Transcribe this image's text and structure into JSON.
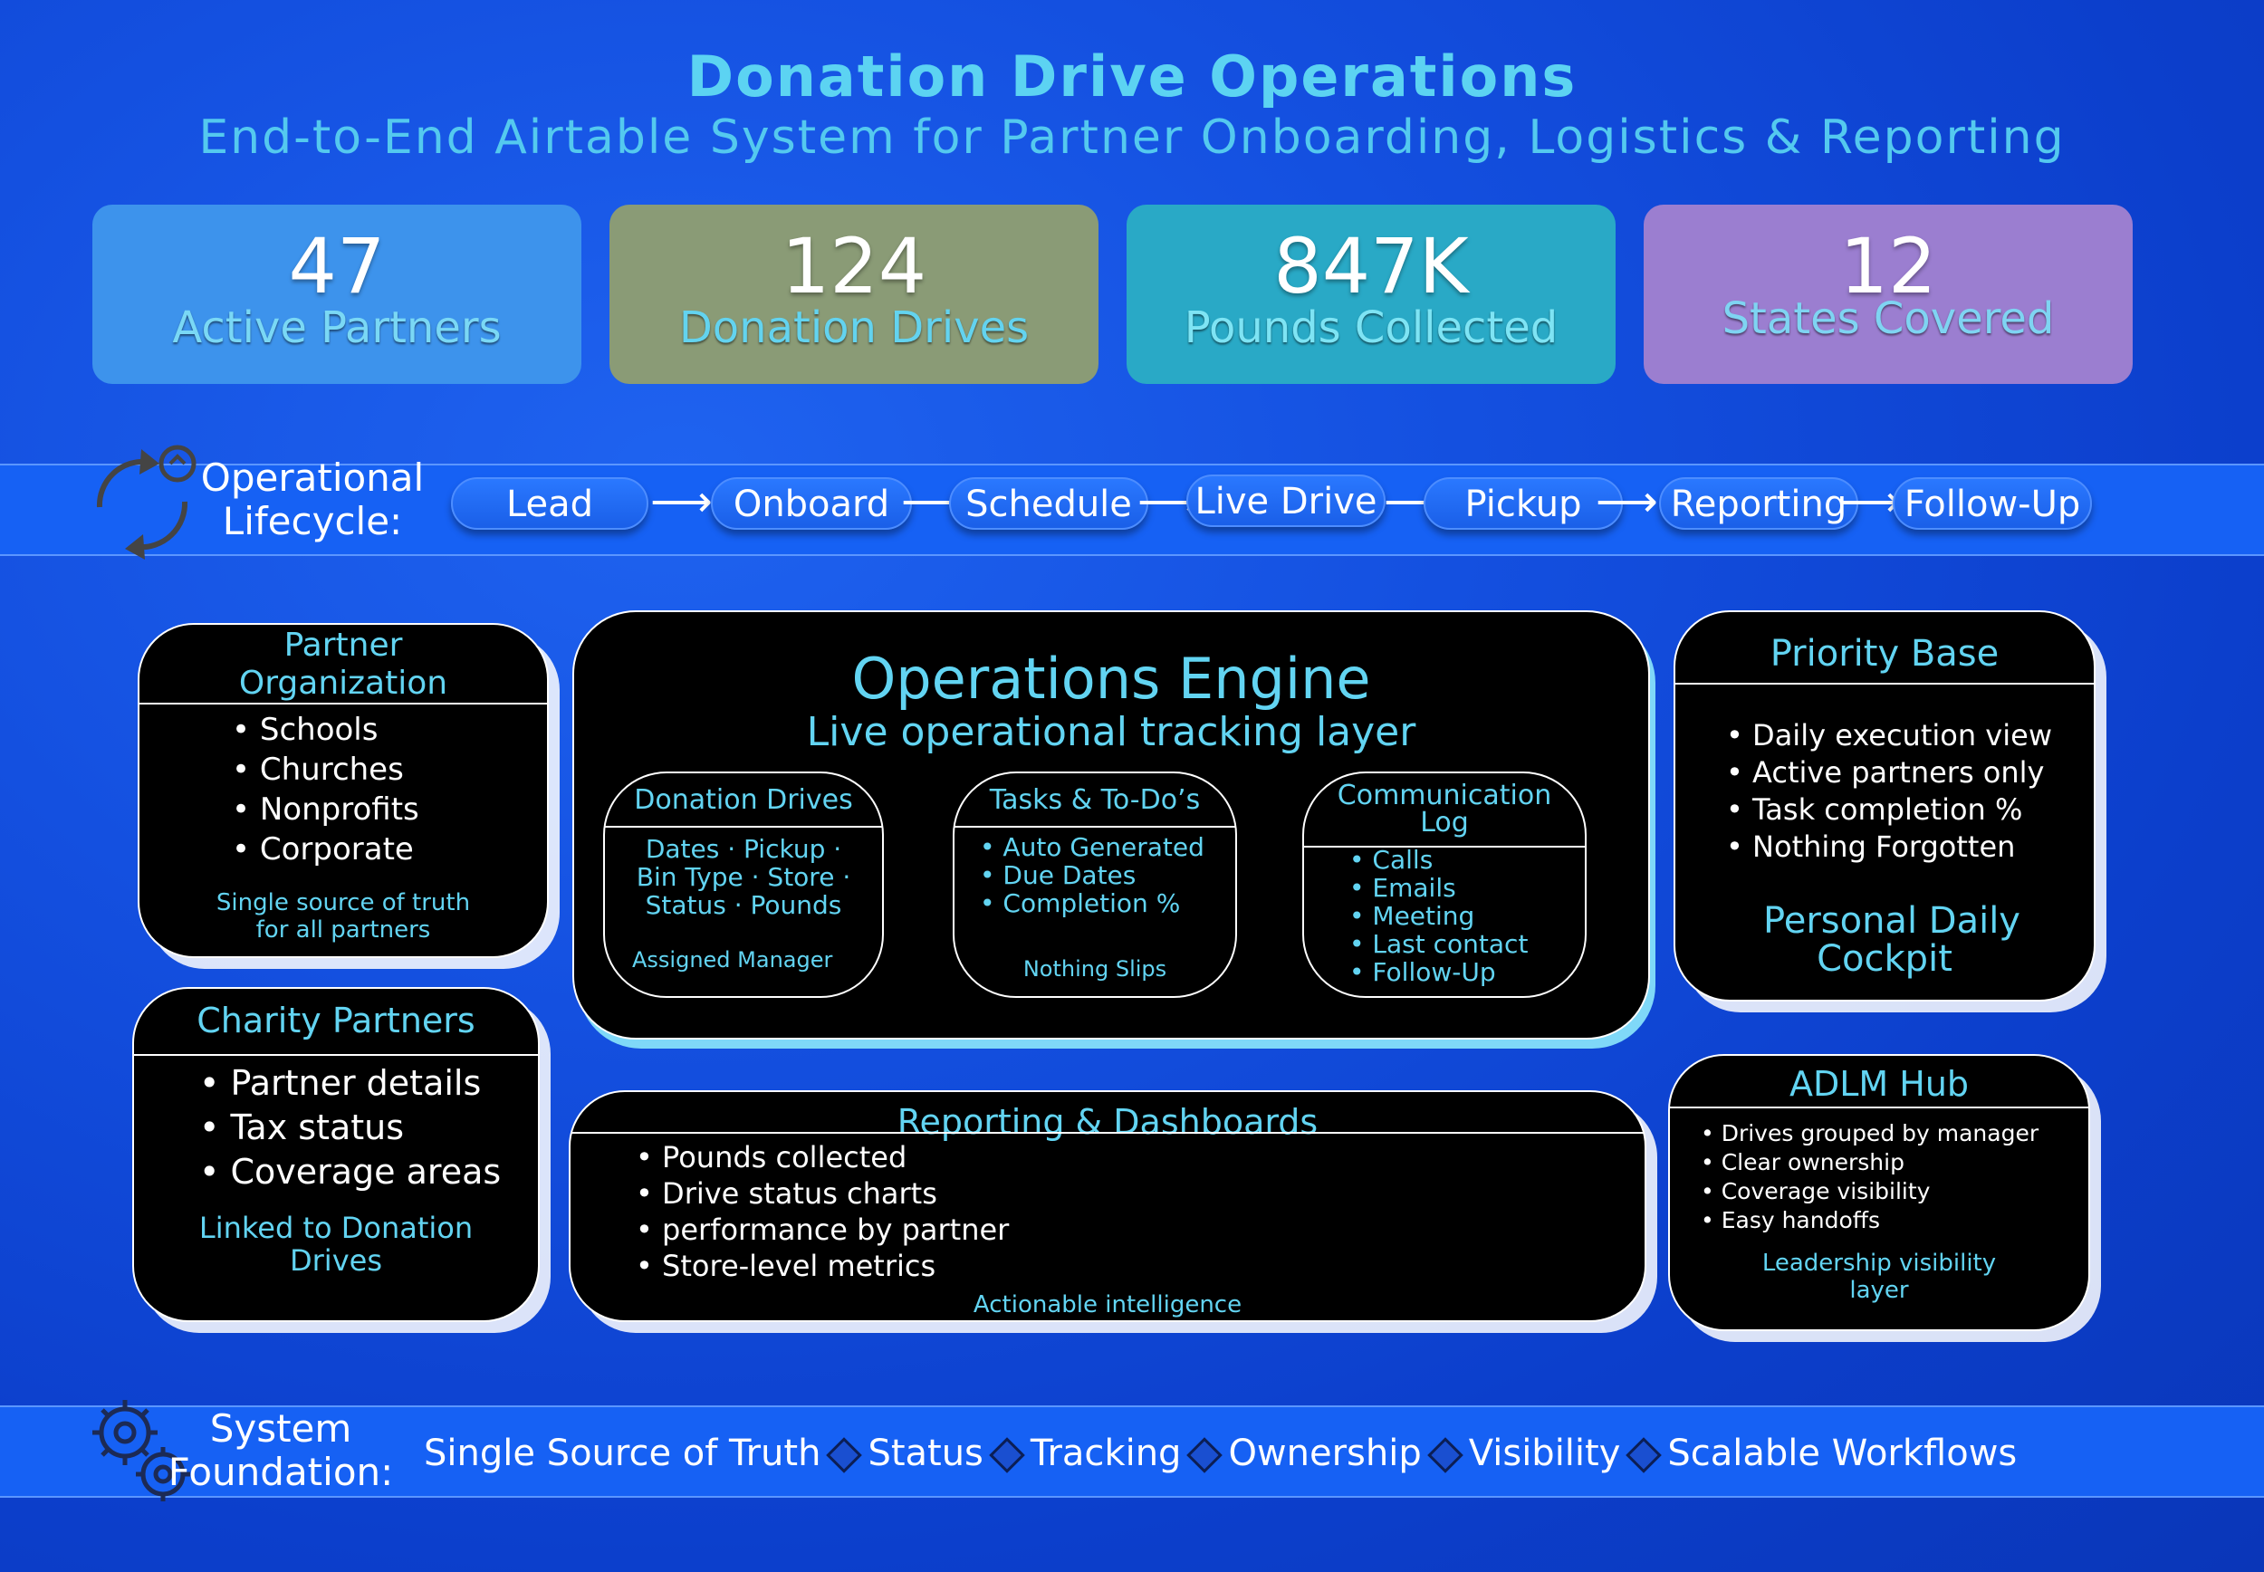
{
  "header": {
    "title": "Donation Drive Operations",
    "subtitle": "End-to-End Airtable System for Partner Onboarding, Logistics & Reporting"
  },
  "stats": [
    {
      "value": "47",
      "label": "Active Partners",
      "color": "#3d93ec"
    },
    {
      "value": "124",
      "label": "Donation Drives",
      "color": "#8a9b76"
    },
    {
      "value": "847K",
      "label": "Pounds Collected",
      "color": "#29a9c6"
    },
    {
      "value": "12",
      "label": "States Covered",
      "color": "#9b7ed0"
    }
  ],
  "lifecycle": {
    "label_line1": "Operational",
    "label_line2": "Lifecycle:",
    "steps": [
      "Lead",
      "Onboard",
      "Schedule",
      "Live Drive",
      "Pickup",
      "Reporting",
      "Follow-Up"
    ]
  },
  "partner_org": {
    "title_line1": "Partner",
    "title_line2": "Organization",
    "items": [
      "Schools",
      "Churches",
      "Nonprofits",
      "Corporate"
    ],
    "note_line1": "Single source of truth",
    "note_line2": "for all partners"
  },
  "charity": {
    "title": "Charity Partners",
    "items": [
      "Partner details",
      "Tax status",
      "Coverage areas"
    ],
    "note_line1": "Linked to Donation",
    "note_line2": "Drives"
  },
  "engine": {
    "title": "Operations Engine",
    "subtitle": "Live operational tracking layer",
    "drives": {
      "title": "Donation Drives",
      "line1": "Dates · Pickup ·",
      "line2": "Bin Type · Store ·",
      "line3": "Status · Pounds",
      "note": "Assigned Manager"
    },
    "tasks": {
      "title": "Tasks & To-Do’s",
      "items": [
        "Auto Generated",
        "Due Dates",
        "Completion %"
      ],
      "note": "Nothing Slips"
    },
    "comms": {
      "title_line1": "Communication",
      "title_line2": "Log",
      "items": [
        "Calls",
        "Emails",
        "Meeting",
        "Last contact",
        "Follow-Up"
      ]
    }
  },
  "priority": {
    "title": "Priority Base",
    "items": [
      "Daily execution view",
      "Active partners only",
      "Task completion %",
      "Nothing Forgotten"
    ],
    "note_line1": "Personal Daily",
    "note_line2": "Cockpit"
  },
  "reporting": {
    "title": "Reporting & Dashboards",
    "items": [
      "Pounds collected",
      "Drive status charts",
      "performance by partner",
      "Store-level metrics"
    ],
    "note": "Actionable intelligence"
  },
  "adlm": {
    "title": "ADLM Hub",
    "items": [
      "Drives grouped by manager",
      "Clear ownership",
      "Coverage visibility",
      "Easy handoffs"
    ],
    "note_line1": "Leadership visibility",
    "note_line2": "layer"
  },
  "foundation": {
    "label_line1": "System",
    "label_line2": "Foundation:",
    "items": [
      "Single Source of Truth",
      "Status",
      "Tracking",
      "Ownership",
      "Visibility",
      "Scalable Workflows"
    ]
  }
}
